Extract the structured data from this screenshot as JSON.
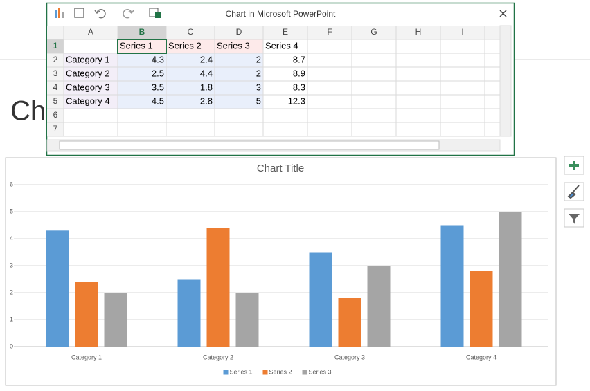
{
  "window": {
    "title": "Chart in Microsoft PowerPoint"
  },
  "slide": {
    "title": "Cha"
  },
  "sheet": {
    "columns": [
      "A",
      "B",
      "C",
      "D",
      "E",
      "F",
      "G",
      "H",
      "I"
    ],
    "rows": [
      1,
      2,
      3,
      4,
      5,
      6,
      7
    ],
    "cells": [
      [
        null,
        "Series 1",
        "Series 2",
        "Series 3",
        "Series 4"
      ],
      [
        "Category 1",
        4.3,
        2.4,
        2,
        8.7
      ],
      [
        "Category 2",
        2.5,
        4.4,
        2,
        8.9
      ],
      [
        "Category 3",
        3.5,
        1.8,
        3,
        8.3
      ],
      [
        "Category 4",
        4.5,
        2.8,
        5,
        12.3
      ]
    ]
  },
  "chart_data": {
    "type": "bar",
    "title": "Chart Title",
    "categories": [
      "Category 1",
      "Category 2",
      "Category 3",
      "Category 4"
    ],
    "series": [
      {
        "name": "Series 1",
        "color": "#5b9bd5",
        "values": [
          4.3,
          2.5,
          3.5,
          4.5
        ]
      },
      {
        "name": "Series 2",
        "color": "#ed7d31",
        "values": [
          2.4,
          4.4,
          1.8,
          2.8
        ]
      },
      {
        "name": "Series 3",
        "color": "#a5a5a5",
        "values": [
          2,
          2,
          3,
          5
        ]
      }
    ],
    "ylim": [
      0,
      6
    ],
    "yticks": [
      0,
      1,
      2,
      3,
      4,
      5,
      6
    ],
    "grid": true,
    "legend": "bottom"
  }
}
